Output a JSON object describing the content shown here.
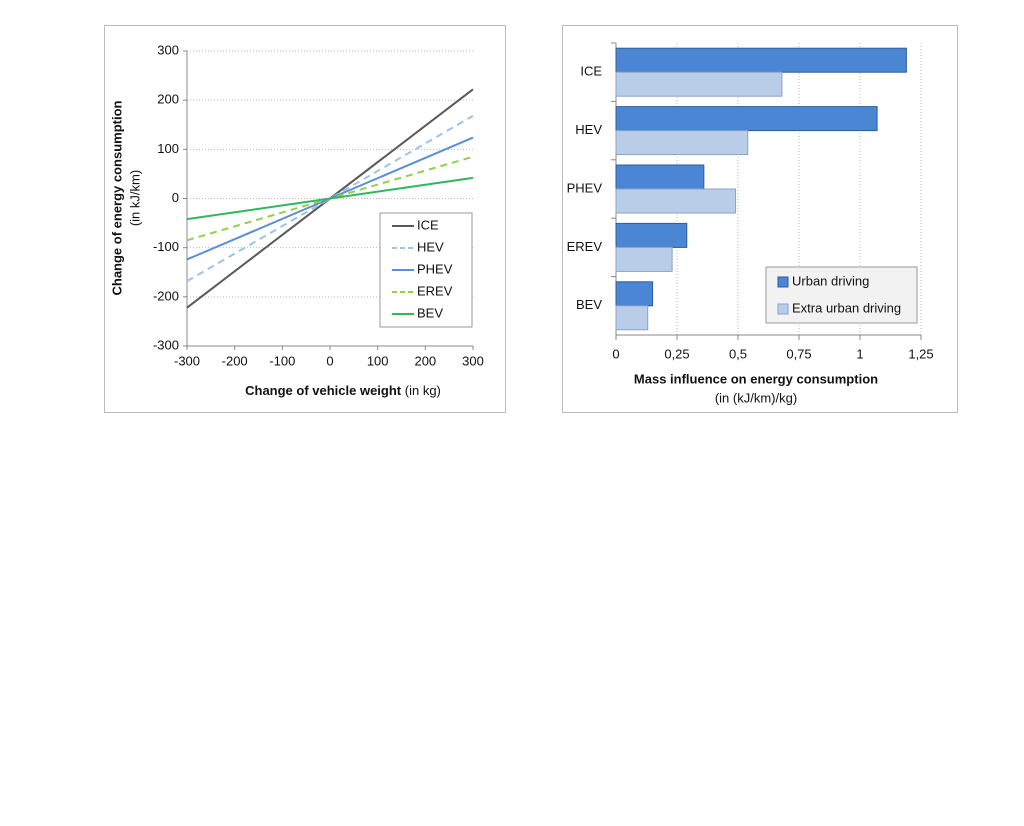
{
  "chart_data": [
    {
      "type": "line",
      "xlabel": "Change of vehicle weight",
      "xlabel_unit": "(in kg)",
      "ylabel": "Change of energy consumption",
      "ylabel_unit": "(in kJ/km)",
      "xlim": [
        -300,
        300
      ],
      "xticks": [
        -300,
        -200,
        -100,
        0,
        100,
        200,
        300
      ],
      "ylim": [
        -300,
        300
      ],
      "yticks": [
        -300,
        -200,
        -100,
        0,
        100,
        200,
        300
      ],
      "grid": true,
      "legend": "lower right",
      "series": [
        {
          "name": "ICE",
          "color": "#595959",
          "dashed": false,
          "x": [
            -300,
            300
          ],
          "values": [
            -222,
            222
          ]
        },
        {
          "name": "HEV",
          "color": "#9dc3e6",
          "dashed": true,
          "x": [
            -300,
            300
          ],
          "values": [
            -168,
            168
          ]
        },
        {
          "name": "PHEV",
          "color": "#5b8fd6",
          "dashed": false,
          "x": [
            -300,
            300
          ],
          "values": [
            -124,
            124
          ]
        },
        {
          "name": "EREV",
          "color": "#92d050",
          "dashed": true,
          "x": [
            -300,
            300
          ],
          "values": [
            -85,
            85
          ]
        },
        {
          "name": "BEV",
          "color": "#2eb85c",
          "dashed": false,
          "x": [
            -300,
            300
          ],
          "values": [
            -42,
            42
          ]
        }
      ]
    },
    {
      "type": "hbar",
      "xlabel": "Mass influence on energy consumption",
      "xlabel_unit": "(in (kJ/km)/kg)",
      "categories": [
        "ICE",
        "HEV",
        "PHEV",
        "EREV",
        "BEV"
      ],
      "xlim": [
        0,
        1.25
      ],
      "xticks": [
        0,
        {
          "value": 0.25,
          "label": "0,25"
        },
        {
          "value": 0.5,
          "label": "0,5"
        },
        {
          "value": 0.75,
          "label": "0,75"
        },
        1,
        {
          "value": 1.25,
          "label": "1,25"
        }
      ],
      "grid": true,
      "legend": "lower right",
      "series": [
        {
          "name": "Urban driving",
          "color": "#4a86d4",
          "values": [
            1.19,
            1.07,
            0.36,
            0.29,
            0.15
          ]
        },
        {
          "name": "Extra urban driving",
          "color": "#b9cde8",
          "values": [
            0.68,
            0.54,
            0.49,
            0.23,
            0.13
          ]
        }
      ]
    }
  ]
}
